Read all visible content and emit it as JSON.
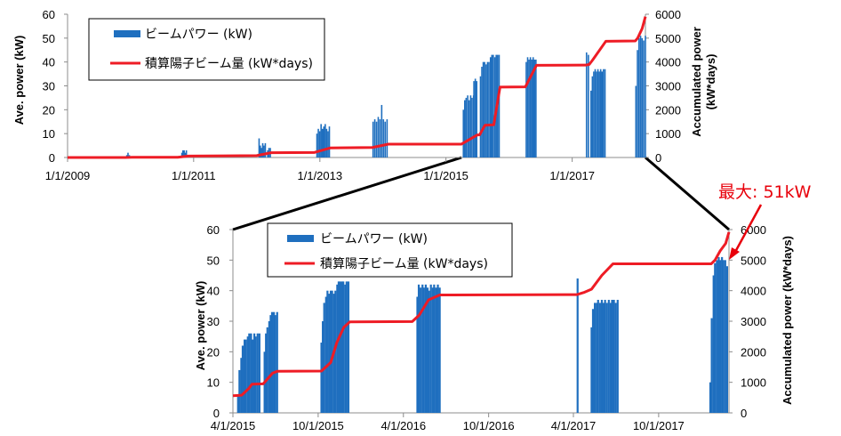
{
  "colors": {
    "bars": "#1f6fbf",
    "accum": "#ee1c25",
    "connector": "#000000",
    "note": "#e8000b"
  },
  "annotation": {
    "text": "最大: 51kW"
  },
  "chart_data": [
    {
      "type": "bar",
      "id": "top",
      "ylabel_left": "Ave. power (kW)",
      "ylabel_right": "Accumulated power (kW*days)",
      "ylim_left": [
        0,
        60
      ],
      "ylim_right": [
        0,
        6000
      ],
      "yticks_left": [
        "0",
        "10",
        "20",
        "30",
        "40",
        "50",
        "60"
      ],
      "yticks_right": [
        "0",
        "1000",
        "2000",
        "3000",
        "4000",
        "5000",
        "6000"
      ],
      "xlim": [
        "2009-01-01",
        "2018-03-01"
      ],
      "xticks": [
        {
          "date": "2009-01-01",
          "label": "1/1/2009"
        },
        {
          "date": "2011-01-01",
          "label": "1/1/2011"
        },
        {
          "date": "2013-01-01",
          "label": "1/1/2013"
        },
        {
          "date": "2015-01-01",
          "label": "1/1/2015"
        },
        {
          "date": "2017-01-01",
          "label": "1/1/2017"
        }
      ],
      "legend": {
        "bars_label": "ビームパワー (kW)",
        "line_label": "積算陽子ビーム量 (kW*days)"
      },
      "bars": [
        {
          "start": "2009-12-10",
          "end": "2009-12-25",
          "values": [
            1,
            2,
            1
          ]
        },
        {
          "start": "2010-10-25",
          "end": "2010-11-20",
          "values": [
            2,
            3,
            3,
            2,
            3
          ]
        },
        {
          "start": "2012-01-15",
          "end": "2012-02-20",
          "values": [
            8,
            5,
            4,
            6,
            5,
            6
          ]
        },
        {
          "start": "2012-03-05",
          "end": "2012-03-20",
          "values": [
            3,
            4,
            4
          ]
        },
        {
          "start": "2012-12-15",
          "end": "2013-02-25",
          "values": [
            10,
            12,
            11,
            14,
            12,
            13,
            14,
            12,
            11,
            13
          ]
        },
        {
          "start": "2013-11-05",
          "end": "2014-01-25",
          "values": [
            15,
            16,
            15,
            17,
            16,
            22,
            16,
            15,
            16
          ]
        },
        {
          "start": "2015-04-12",
          "end": "2015-06-10",
          "values": [
            20,
            24,
            25,
            26,
            24,
            26,
            25,
            26
          ]
        },
        {
          "start": "2015-06-12",
          "end": "2015-06-28",
          "values": [
            32,
            33,
            32
          ]
        },
        {
          "start": "2015-07-20",
          "end": "2015-11-05",
          "values": [
            34,
            38,
            40,
            40,
            39,
            40,
            40,
            42,
            43,
            43,
            42,
            43,
            43,
            43
          ]
        },
        {
          "start": "2016-04-10",
          "end": "2016-06-05",
          "values": [
            40,
            42,
            41,
            42,
            41,
            42,
            41,
            41
          ]
        },
        {
          "start": "2017-03-25",
          "end": "2017-04-05",
          "values": [
            44,
            43
          ]
        },
        {
          "start": "2017-04-20",
          "end": "2017-07-10",
          "values": [
            28,
            34,
            36,
            37,
            36,
            37,
            36,
            37,
            36,
            37,
            37
          ]
        },
        {
          "start": "2018-01-05",
          "end": "2018-03-01",
          "values": [
            30,
            45,
            50,
            51,
            50,
            49,
            51
          ]
        }
      ],
      "accumulated": [
        [
          "2009-01-01",
          0
        ],
        [
          "2009-12-01",
          0
        ],
        [
          "2010-01-10",
          10
        ],
        [
          "2010-10-01",
          10
        ],
        [
          "2010-12-01",
          60
        ],
        [
          "2012-01-01",
          80
        ],
        [
          "2012-03-25",
          200
        ],
        [
          "2012-12-01",
          210
        ],
        [
          "2013-03-01",
          400
        ],
        [
          "2013-11-01",
          420
        ],
        [
          "2014-02-01",
          560
        ],
        [
          "2015-04-01",
          560
        ],
        [
          "2015-06-30",
          940
        ],
        [
          "2015-07-15",
          950
        ],
        [
          "2015-08-15",
          1350
        ],
        [
          "2015-10-05",
          1370
        ],
        [
          "2015-11-10",
          2950
        ],
        [
          "2016-04-05",
          2960
        ],
        [
          "2016-06-08",
          3860
        ],
        [
          "2017-03-20",
          3870
        ],
        [
          "2017-04-10",
          3900
        ],
        [
          "2017-05-01",
          4100
        ],
        [
          "2017-07-15",
          4870
        ],
        [
          "2018-01-01",
          4880
        ],
        [
          "2018-01-15",
          5000
        ],
        [
          "2018-02-10",
          5400
        ],
        [
          "2018-03-01",
          5900
        ]
      ]
    },
    {
      "type": "bar",
      "id": "bottom",
      "ylabel_left": "Ave. power (kW)",
      "ylabel_right": "Accumulated power (kW*days)",
      "ylim_left": [
        0,
        60
      ],
      "ylim_right": [
        0,
        6000
      ],
      "yticks_left": [
        "0",
        "10",
        "20",
        "30",
        "40",
        "50",
        "60"
      ],
      "yticks_right": [
        "0",
        "1000",
        "2000",
        "3000",
        "4000",
        "5000",
        "6000"
      ],
      "xlim": [
        "2015-04-01",
        "2018-03-01"
      ],
      "xticks": [
        {
          "date": "2015-04-01",
          "label": "4/1/2015"
        },
        {
          "date": "2015-10-01",
          "label": "10/1/2015"
        },
        {
          "date": "2016-04-01",
          "label": "4/1/2016"
        },
        {
          "date": "2016-10-01",
          "label": "10/1/2016"
        },
        {
          "date": "2017-04-01",
          "label": "4/1/2017"
        },
        {
          "date": "2017-10-01",
          "label": "10/1/2017"
        }
      ],
      "legend": {
        "bars_label": "ビームパワー (kW)",
        "line_label": "積算陽子ビーム量 (kW*days)"
      },
      "bars": [
        {
          "start": "2015-04-12",
          "end": "2015-05-28",
          "values": [
            6,
            14,
            18,
            22,
            24,
            24,
            25,
            26,
            26,
            24,
            26,
            25,
            26,
            26
          ]
        },
        {
          "start": "2015-06-08",
          "end": "2015-07-05",
          "values": [
            20,
            26,
            28,
            30,
            32,
            33,
            33,
            32,
            33
          ]
        },
        {
          "start": "2015-10-08",
          "end": "2015-12-05",
          "values": [
            23,
            30,
            36,
            38,
            40,
            39,
            40,
            40,
            39,
            40,
            42,
            43,
            43,
            43,
            43,
            42,
            43,
            43
          ]
        },
        {
          "start": "2016-05-01",
          "end": "2016-06-18",
          "values": [
            38,
            42,
            41,
            42,
            41,
            42,
            41,
            40,
            42,
            41,
            42,
            41,
            42,
            41
          ]
        },
        {
          "start": "2017-04-10",
          "end": "2017-04-14",
          "values": [
            44
          ]
        },
        {
          "start": "2017-05-10",
          "end": "2017-07-05",
          "values": [
            28,
            34,
            36,
            36,
            37,
            36,
            37,
            36,
            37,
            36,
            37,
            36,
            37,
            37,
            36,
            37
          ]
        },
        {
          "start": "2018-01-20",
          "end": "2018-02-25",
          "values": [
            10,
            31,
            45,
            49,
            50,
            51,
            50,
            51,
            50,
            50,
            48
          ]
        }
      ],
      "accumulated": [
        [
          "2015-04-01",
          560
        ],
        [
          "2015-04-20",
          580
        ],
        [
          "2015-05-05",
          800
        ],
        [
          "2015-05-12",
          940
        ],
        [
          "2015-06-05",
          950
        ],
        [
          "2015-06-25",
          1300
        ],
        [
          "2015-07-05",
          1360
        ],
        [
          "2015-10-08",
          1370
        ],
        [
          "2015-10-28",
          1650
        ],
        [
          "2015-11-10",
          2300
        ],
        [
          "2015-11-25",
          2800
        ],
        [
          "2015-12-08",
          2980
        ],
        [
          "2016-04-20",
          2990
        ],
        [
          "2016-05-05",
          3200
        ],
        [
          "2016-05-25",
          3700
        ],
        [
          "2016-06-18",
          3860
        ],
        [
          "2017-04-08",
          3870
        ],
        [
          "2017-04-25",
          3950
        ],
        [
          "2017-05-10",
          4050
        ],
        [
          "2017-06-01",
          4500
        ],
        [
          "2017-06-25",
          4880
        ],
        [
          "2018-01-22",
          4880
        ],
        [
          "2018-01-30",
          5000
        ],
        [
          "2018-02-10",
          5300
        ],
        [
          "2018-02-22",
          5550
        ],
        [
          "2018-03-01",
          5920
        ]
      ]
    }
  ]
}
